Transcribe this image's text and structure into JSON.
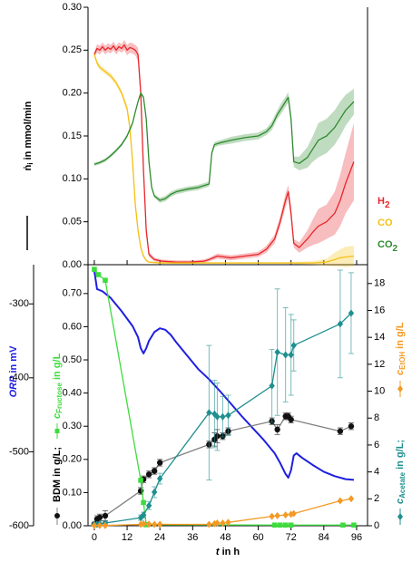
{
  "chart_data": [
    {
      "type": "line",
      "ylabel": [
        "ṅ",
        "i",
        " in mmol/min"
      ],
      "xlim": [
        -2.3,
        100
      ],
      "xticks": [
        0,
        12,
        24,
        36,
        48,
        60,
        72,
        84,
        96
      ],
      "xtick_labels": false,
      "ylim": [
        0,
        0.3
      ],
      "yticks": [
        {
          "value": 0,
          "label": "0.00"
        },
        0.05,
        {
          "value": 0.1,
          "label": "0.10"
        },
        0.15,
        {
          "value": 0.2,
          "label": "0.20"
        },
        0.25,
        {
          "value": 0.3,
          "label": "0.30"
        }
      ],
      "error_style": "band",
      "legend": true,
      "series": [
        {
          "name": [
            "H",
            "2"
          ],
          "color": "#e8262a",
          "x": [
            0,
            1,
            2,
            3,
            4,
            5,
            6,
            7,
            8,
            9,
            10,
            11,
            12,
            13,
            14,
            15,
            16,
            17,
            18,
            19,
            20,
            22,
            25,
            30,
            35,
            40,
            42,
            45,
            50,
            55,
            60,
            63,
            66,
            68,
            70,
            71,
            72,
            73,
            75,
            78,
            80,
            82,
            85,
            88,
            90,
            92,
            95
          ],
          "values": [
            0.245,
            0.252,
            0.25,
            0.254,
            0.25,
            0.253,
            0.251,
            0.255,
            0.25,
            0.254,
            0.252,
            0.256,
            0.25,
            0.253,
            0.252,
            0.25,
            0.245,
            0.2,
            0.11,
            0.04,
            0.012,
            0.006,
            0.004,
            0.003,
            0.003,
            0.004,
            0.006,
            0.01,
            0.008,
            0.01,
            0.012,
            0.018,
            0.03,
            0.05,
            0.075,
            0.085,
            0.06,
            0.025,
            0.02,
            0.03,
            0.038,
            0.045,
            0.05,
            0.06,
            0.075,
            0.095,
            0.12
          ],
          "errors": [
            0.003,
            0.005,
            0.005,
            0.005,
            0.005,
            0.005,
            0.005,
            0.005,
            0.005,
            0.005,
            0.005,
            0.006,
            0.006,
            0.006,
            0.006,
            0.006,
            0.008,
            0.01,
            0.01,
            0.006,
            0.003,
            0.002,
            0.002,
            0.002,
            0.002,
            0.002,
            0.002,
            0.003,
            0.003,
            0.003,
            0.003,
            0.004,
            0.005,
            0.006,
            0.008,
            0.008,
            0.008,
            0.005,
            0.006,
            0.01,
            0.015,
            0.02,
            0.02,
            0.025,
            0.03,
            0.035,
            0.045
          ]
        },
        {
          "name": [
            "CO"
          ],
          "color": "#f5c013",
          "x": [
            0,
            1,
            2,
            4,
            6,
            8,
            10,
            12,
            13,
            14,
            15,
            16,
            17,
            18,
            19,
            20,
            24,
            30,
            40,
            50,
            60,
            70,
            80,
            85,
            88,
            90,
            92,
            95
          ],
          "values": [
            0.245,
            0.235,
            0.23,
            0.225,
            0.22,
            0.212,
            0.2,
            0.182,
            0.16,
            0.12,
            0.07,
            0.04,
            0.02,
            0.01,
            0.005,
            0.003,
            0.002,
            0.002,
            0.002,
            0.002,
            0.002,
            0.002,
            0.002,
            0.003,
            0.006,
            0.008,
            0.009,
            0.01
          ],
          "errors": [
            0.003,
            0.003,
            0.003,
            0.003,
            0.003,
            0.003,
            0.003,
            0.004,
            0.005,
            0.006,
            0.006,
            0.005,
            0.003,
            0.002,
            0.001,
            0.001,
            0.001,
            0.001,
            0.001,
            0.001,
            0.001,
            0.001,
            0.002,
            0.004,
            0.008,
            0.01,
            0.012,
            0.012
          ]
        },
        {
          "name": [
            "CO",
            "2"
          ],
          "color": "#2e8b2e",
          "x": [
            0,
            2,
            4,
            6,
            8,
            10,
            12,
            14,
            15,
            16,
            17,
            18,
            19,
            20,
            21,
            22,
            24,
            26,
            28,
            30,
            34,
            38,
            40,
            42,
            43,
            44,
            46,
            50,
            55,
            60,
            63,
            65,
            67,
            68,
            70,
            71,
            72,
            73,
            75,
            78,
            80,
            82,
            85,
            88,
            90,
            92,
            95
          ],
          "values": [
            0.117,
            0.119,
            0.122,
            0.127,
            0.133,
            0.14,
            0.15,
            0.165,
            0.178,
            0.19,
            0.2,
            0.195,
            0.17,
            0.12,
            0.09,
            0.08,
            0.075,
            0.077,
            0.082,
            0.085,
            0.088,
            0.09,
            0.092,
            0.094,
            0.13,
            0.14,
            0.142,
            0.145,
            0.148,
            0.15,
            0.155,
            0.162,
            0.175,
            0.18,
            0.19,
            0.195,
            0.17,
            0.12,
            0.118,
            0.125,
            0.135,
            0.145,
            0.15,
            0.16,
            0.17,
            0.18,
            0.19
          ],
          "errors": [
            0.002,
            0.002,
            0.002,
            0.002,
            0.002,
            0.002,
            0.002,
            0.002,
            0.002,
            0.002,
            0.002,
            0.002,
            0.002,
            0.002,
            0.002,
            0.002,
            0.003,
            0.003,
            0.003,
            0.003,
            0.003,
            0.003,
            0.003,
            0.003,
            0.003,
            0.003,
            0.003,
            0.004,
            0.004,
            0.004,
            0.004,
            0.005,
            0.005,
            0.006,
            0.006,
            0.006,
            0.006,
            0.006,
            0.008,
            0.012,
            0.015,
            0.02,
            0.02,
            0.02,
            0.02,
            0.018,
            0.015
          ]
        }
      ]
    },
    {
      "type": "line",
      "xlabel": [
        "t",
        " in h"
      ],
      "ylabel": [
        "BDM in g/L;",
        "c",
        "Fructose",
        " in g/L"
      ],
      "y2label": [
        "c",
        "Acetate",
        " in g/L;",
        "c",
        "EtOH",
        " in g/L"
      ],
      "y3label": [
        "ORP",
        " in mV"
      ],
      "xlim": [
        -2.3,
        100
      ],
      "xticks": [
        0,
        12,
        24,
        36,
        48,
        60,
        72,
        84,
        96
      ],
      "ylim": [
        0,
        0.787
      ],
      "yticks": [
        {
          "value": 0,
          "label": "0.00"
        },
        {
          "value": 0.1,
          "label": "0.10"
        },
        {
          "value": 0.2,
          "label": "0.20"
        },
        {
          "value": 0.3,
          "label": "0.30"
        },
        {
          "value": 0.4,
          "label": "0.40"
        },
        {
          "value": 0.5,
          "label": "0.50"
        },
        {
          "value": 0.6,
          "label": "0.60"
        },
        {
          "value": 0.7,
          "label": "0.70"
        }
      ],
      "y2lim": [
        0,
        19.4
      ],
      "y2ticks": [
        0,
        2,
        4,
        6,
        8,
        10,
        12,
        14,
        16,
        18
      ],
      "y3lim": [
        -600,
        -247
      ],
      "y3ticks": [
        -600,
        -500,
        -400,
        -300
      ],
      "error_style": "bars",
      "series": [
        {
          "color": "#1f1fe0",
          "axis": "y3",
          "line_width": 2,
          "x": [
            0,
            1,
            3,
            6,
            10,
            14,
            16,
            17,
            18,
            19,
            20,
            22,
            24,
            26,
            28,
            30,
            34,
            38,
            42,
            46,
            50,
            54,
            58,
            62,
            66,
            68,
            70,
            71,
            72,
            73,
            74,
            76,
            80,
            84,
            88,
            92,
            95
          ],
          "values": [
            -255,
            -280,
            -283,
            -292,
            -310,
            -330,
            -345,
            -360,
            -367,
            -360,
            -350,
            -338,
            -333,
            -335,
            -342,
            -352,
            -370,
            -388,
            -402,
            -418,
            -435,
            -452,
            -468,
            -484,
            -502,
            -515,
            -530,
            -535,
            -525,
            -505,
            -502,
            -508,
            -518,
            -527,
            -533,
            -537,
            -538
          ]
        },
        {
          "color": "#111111",
          "line_color": "#808080",
          "marker": "circle",
          "x": [
            0,
            1,
            2,
            4,
            17,
            18,
            20,
            22,
            24,
            42,
            44,
            45,
            47,
            49,
            65,
            67,
            70,
            71,
            72,
            90,
            94
          ],
          "values": [
            0.005,
            0.02,
            0.025,
            0.03,
            0.105,
            0.14,
            0.155,
            0.165,
            0.19,
            0.245,
            0.26,
            0.27,
            0.27,
            0.285,
            0.315,
            0.29,
            0.33,
            0.33,
            0.32,
            0.285,
            0.3
          ],
          "errors": [
            0.003,
            0.01,
            0.01,
            0.015,
            0.01,
            0.01,
            0.01,
            0.01,
            0.01,
            0.01,
            0.02,
            0.02,
            0.01,
            0.01,
            0.01,
            0.015,
            0.01,
            0.01,
            0.01,
            0.01,
            0.01
          ]
        },
        {
          "color": "#3ddc3d",
          "marker": "square",
          "x": [
            0,
            1.5,
            4,
            17,
            18,
            19,
            66,
            68,
            70,
            72,
            91,
            95
          ],
          "values": [
            0.773,
            0.757,
            0.74,
            0.137,
            0.07,
            0.003,
            0.002,
            0.002,
            0.002,
            0.002,
            0.002,
            0.002
          ]
        },
        {
          "color": "#1f8f8f",
          "axis": "y2",
          "marker": "diamond",
          "x": [
            0,
            1,
            2,
            4,
            17,
            18,
            20,
            22,
            24,
            42,
            44,
            45,
            47,
            49,
            65,
            67,
            70,
            72,
            73,
            90,
            94
          ],
          "values": [
            0.1,
            0.1,
            0.15,
            0.2,
            0.6,
            0.8,
            1.5,
            2.5,
            3.5,
            8.4,
            8.3,
            8.1,
            8.1,
            8.2,
            10.4,
            12.9,
            12.7,
            12.7,
            13.4,
            15,
            15.8
          ],
          "errors": [
            0.05,
            0.05,
            0.05,
            0.1,
            0.2,
            0.2,
            0.3,
            0.4,
            0.4,
            5,
            2.5,
            2.5,
            1.5,
            1.5,
            2.7,
            4.7,
            3.5,
            3,
            1.9,
            4,
            3
          ]
        },
        {
          "color": "#f39a26",
          "axis": "y2",
          "marker": "diamond",
          "x": [
            0,
            2,
            4,
            17,
            18,
            20,
            22,
            24,
            42,
            44,
            45,
            47,
            49,
            65,
            67,
            70,
            72,
            73,
            90,
            94
          ],
          "values": [
            0.02,
            0.02,
            0.02,
            0.1,
            0.15,
            0.12,
            0.1,
            0.1,
            0.1,
            0.15,
            0.2,
            0.2,
            0.25,
            0.7,
            0.75,
            0.8,
            0.85,
            0.9,
            1.85,
            2.0
          ]
        }
      ]
    }
  ]
}
